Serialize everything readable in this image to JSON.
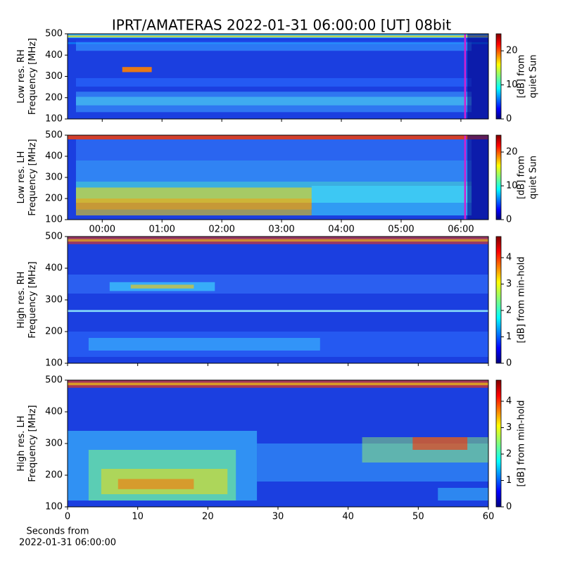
{
  "chart_data": [
    {
      "type": "heatmap",
      "title": "IPRT/AMATERAS 2022-01-31 06:00:00 [UT]   08bit",
      "ylabel": [
        "Low res. RH",
        "Frequency [MHz]"
      ],
      "ylim": [
        100,
        500
      ],
      "yticks": [
        100,
        200,
        300,
        400,
        500
      ],
      "xlim": [
        -0.58,
        6.46
      ],
      "vline": 6.07,
      "vline_color": "#d020d0",
      "colorbar_label": [
        "[dB] from",
        "quiet Sun"
      ],
      "clim": [
        0,
        25
      ],
      "cticks": [
        0,
        10,
        20
      ],
      "colormap": "jet"
    },
    {
      "type": "heatmap",
      "ylabel": [
        "Low res. LH",
        "Frequency [MHz]"
      ],
      "ylim": [
        100,
        500
      ],
      "yticks": [
        100,
        200,
        300,
        400,
        500
      ],
      "xlim": [
        -0.58,
        6.46
      ],
      "xticks": [
        {
          "value": 0,
          "label": "00:00"
        },
        {
          "value": 1,
          "label": "01:00"
        },
        {
          "value": 2,
          "label": "02:00"
        },
        {
          "value": 3,
          "label": "03:00"
        },
        {
          "value": 4,
          "label": "04:00"
        },
        {
          "value": 5,
          "label": "05:00"
        },
        {
          "value": 6,
          "label": "06:00"
        }
      ],
      "vline": 6.07,
      "vline_color": "#d020d0",
      "colorbar_label": [
        "[dB] from",
        "quiet Sun"
      ],
      "clim": [
        0,
        25
      ],
      "cticks": [
        0,
        10,
        20
      ],
      "colormap": "jet"
    },
    {
      "type": "heatmap",
      "ylabel": [
        "High res. RH",
        "Frequency [MHz]"
      ],
      "ylim": [
        100,
        500
      ],
      "yticks": [
        100,
        200,
        300,
        400,
        500
      ],
      "xlim": [
        0,
        60
      ],
      "colorbar_label": [
        "[dB] from min-hold"
      ],
      "clim": [
        0,
        4.8
      ],
      "cticks": [
        0,
        1,
        2,
        3,
        4
      ],
      "colormap": "jet"
    },
    {
      "type": "heatmap",
      "ylabel": [
        "High res. LH",
        "Frequency [MHz]"
      ],
      "ylim": [
        100,
        500
      ],
      "yticks": [
        100,
        200,
        300,
        400,
        500
      ],
      "xlim": [
        0,
        60
      ],
      "xticks": [
        0,
        10,
        20,
        30,
        40,
        50,
        60
      ],
      "xlabel": [
        "Seconds from",
        "2022-01-31 06:00:00"
      ],
      "colorbar_label": [
        "[dB] from min-hold"
      ],
      "clim": [
        0,
        4.8
      ],
      "cticks": [
        0,
        1,
        2,
        3,
        4
      ],
      "colormap": "jet"
    }
  ]
}
